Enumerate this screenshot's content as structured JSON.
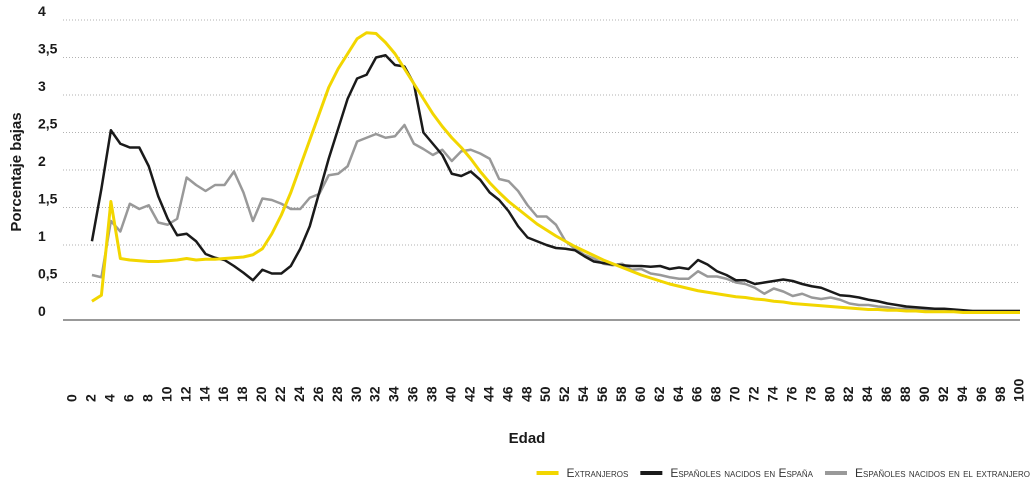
{
  "chart_data": {
    "type": "line",
    "x_label": "Edad",
    "y_label": "Porcentaje bajas",
    "x": [
      2,
      3,
      4,
      5,
      6,
      7,
      8,
      9,
      10,
      11,
      12,
      13,
      14,
      15,
      16,
      17,
      18,
      19,
      20,
      21,
      22,
      23,
      24,
      25,
      26,
      27,
      28,
      29,
      30,
      31,
      32,
      33,
      34,
      35,
      36,
      37,
      38,
      39,
      40,
      41,
      42,
      43,
      44,
      45,
      46,
      47,
      48,
      49,
      50,
      51,
      52,
      53,
      54,
      55,
      56,
      57,
      58,
      59,
      60,
      61,
      62,
      63,
      64,
      65,
      66,
      67,
      68,
      69,
      70,
      71,
      72,
      73,
      74,
      75,
      76,
      77,
      78,
      79,
      80,
      81,
      82,
      83,
      84,
      85,
      86,
      87,
      88,
      89,
      90,
      91,
      92,
      93,
      94,
      95,
      96,
      97,
      98,
      99,
      100
    ],
    "series": [
      {
        "name": "Extranjeros",
        "color": "#f2d600",
        "values": [
          0.25,
          0.33,
          1.58,
          0.82,
          0.8,
          0.79,
          0.78,
          0.78,
          0.79,
          0.8,
          0.82,
          0.8,
          0.81,
          0.81,
          0.82,
          0.83,
          0.84,
          0.87,
          0.95,
          1.15,
          1.4,
          1.7,
          2.05,
          2.4,
          2.75,
          3.1,
          3.35,
          3.55,
          3.75,
          3.83,
          3.82,
          3.7,
          3.55,
          3.35,
          3.15,
          2.95,
          2.75,
          2.58,
          2.43,
          2.3,
          2.15,
          1.98,
          1.83,
          1.7,
          1.58,
          1.48,
          1.38,
          1.28,
          1.2,
          1.12,
          1.05,
          0.98,
          0.92,
          0.86,
          0.8,
          0.75,
          0.7,
          0.65,
          0.6,
          0.56,
          0.52,
          0.48,
          0.45,
          0.42,
          0.39,
          0.37,
          0.35,
          0.33,
          0.31,
          0.3,
          0.28,
          0.27,
          0.25,
          0.24,
          0.22,
          0.21,
          0.2,
          0.19,
          0.18,
          0.17,
          0.16,
          0.15,
          0.14,
          0.14,
          0.13,
          0.13,
          0.12,
          0.12,
          0.11,
          0.11,
          0.11,
          0.11,
          0.1,
          0.1,
          0.1,
          0.1,
          0.1,
          0.1,
          0.1
        ]
      },
      {
        "name": "Españoles nacidos en España",
        "color": "#1a1a1a",
        "values": [
          1.05,
          1.75,
          2.53,
          2.35,
          2.3,
          2.3,
          2.05,
          1.65,
          1.35,
          1.13,
          1.15,
          1.05,
          0.88,
          0.83,
          0.8,
          0.72,
          0.63,
          0.53,
          0.67,
          0.62,
          0.62,
          0.72,
          0.95,
          1.25,
          1.7,
          2.15,
          2.55,
          2.95,
          3.22,
          3.27,
          3.5,
          3.53,
          3.4,
          3.38,
          3.15,
          2.5,
          2.35,
          2.2,
          1.95,
          1.92,
          1.98,
          1.87,
          1.7,
          1.6,
          1.45,
          1.25,
          1.1,
          1.05,
          1.0,
          0.96,
          0.95,
          0.93,
          0.85,
          0.78,
          0.76,
          0.74,
          0.73,
          0.72,
          0.72,
          0.71,
          0.72,
          0.68,
          0.7,
          0.68,
          0.8,
          0.74,
          0.65,
          0.6,
          0.53,
          0.53,
          0.48,
          0.5,
          0.52,
          0.54,
          0.52,
          0.48,
          0.45,
          0.43,
          0.38,
          0.33,
          0.32,
          0.3,
          0.27,
          0.25,
          0.22,
          0.2,
          0.18,
          0.17,
          0.16,
          0.15,
          0.15,
          0.14,
          0.13,
          0.12,
          0.12,
          0.12,
          0.12,
          0.12,
          0.12
        ]
      },
      {
        "name": "Españoles nacidos en el extranjero",
        "color": "#999999",
        "values": [
          0.6,
          0.57,
          1.32,
          1.18,
          1.55,
          1.48,
          1.53,
          1.3,
          1.27,
          1.35,
          1.9,
          1.8,
          1.72,
          1.8,
          1.8,
          1.98,
          1.7,
          1.32,
          1.62,
          1.6,
          1.55,
          1.48,
          1.48,
          1.63,
          1.68,
          1.93,
          1.95,
          2.05,
          2.38,
          2.43,
          2.48,
          2.43,
          2.45,
          2.6,
          2.35,
          2.28,
          2.2,
          2.27,
          2.12,
          2.25,
          2.27,
          2.22,
          2.15,
          1.88,
          1.85,
          1.72,
          1.53,
          1.38,
          1.38,
          1.27,
          1.05,
          0.95,
          0.87,
          0.82,
          0.75,
          0.73,
          0.75,
          0.67,
          0.68,
          0.62,
          0.6,
          0.57,
          0.55,
          0.55,
          0.65,
          0.58,
          0.58,
          0.55,
          0.5,
          0.48,
          0.43,
          0.35,
          0.42,
          0.38,
          0.32,
          0.35,
          0.3,
          0.28,
          0.3,
          0.27,
          0.22,
          0.2,
          0.2,
          0.18,
          0.17,
          0.15,
          0.15,
          0.14,
          0.13,
          0.12,
          0.12,
          0.12,
          0.12,
          0.12,
          0.12,
          0.12,
          0.12,
          0.12,
          0.12
        ]
      }
    ],
    "xlim": [
      0,
      100
    ],
    "xticks": [
      0,
      2,
      4,
      6,
      8,
      10,
      12,
      14,
      16,
      18,
      20,
      22,
      24,
      26,
      28,
      30,
      32,
      34,
      36,
      38,
      40,
      42,
      44,
      46,
      48,
      50,
      52,
      54,
      56,
      58,
      60,
      62,
      64,
      66,
      68,
      70,
      72,
      74,
      76,
      78,
      80,
      82,
      84,
      86,
      88,
      90,
      92,
      94,
      96,
      98,
      100
    ],
    "ylim": [
      0,
      4
    ],
    "yticks": [
      0,
      {
        "value": 0.5,
        "label": "0,5"
      },
      1,
      {
        "value": 1.5,
        "label": "1,5"
      },
      2,
      {
        "value": 2.5,
        "label": "2,5"
      },
      3,
      {
        "value": 3.5,
        "label": "3,5"
      },
      4
    ],
    "grid": true,
    "legend": "bottom-right"
  }
}
